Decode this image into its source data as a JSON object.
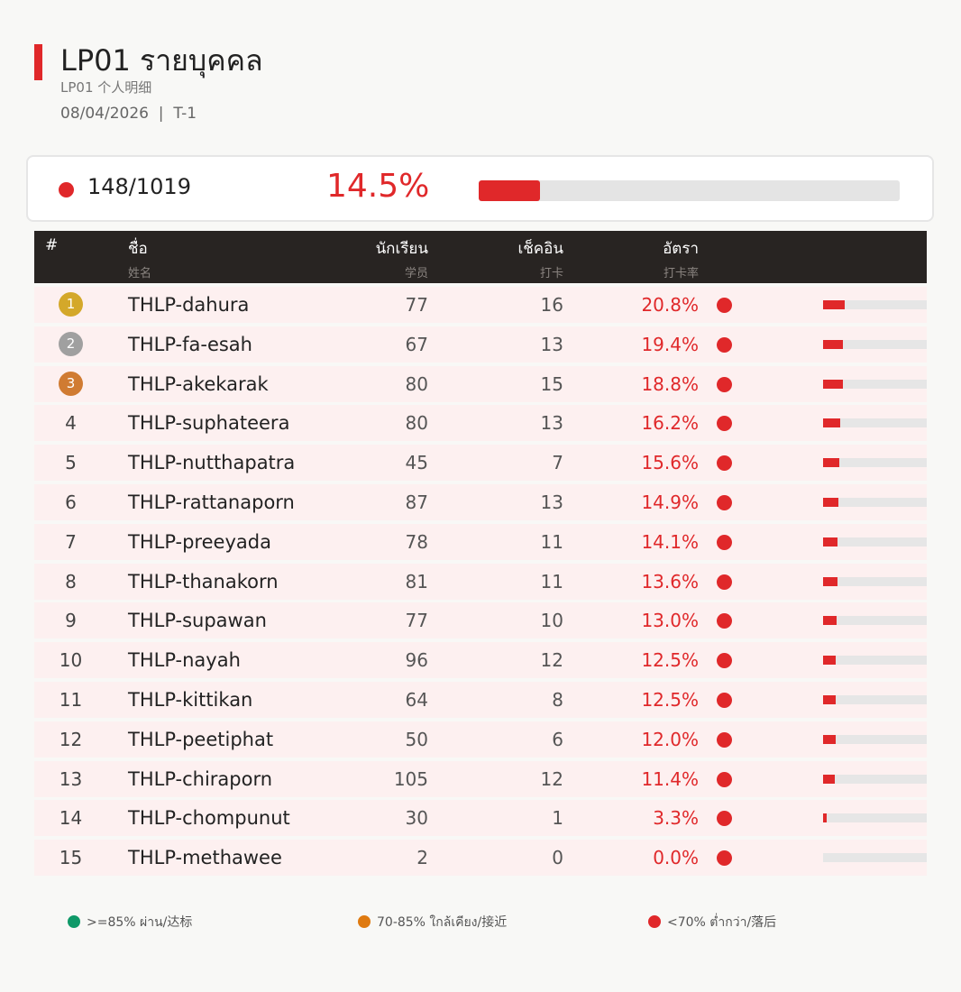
{
  "header": {
    "title": "LP01  รายบุคคล",
    "subtitle": "LP01  个人明细",
    "date": "08/04/2026",
    "separator": "|",
    "period": "T-1"
  },
  "summary": {
    "ratio": "148/1019",
    "percent": "14.5%",
    "progress_fraction": 0.145,
    "status_color": "#e0282a"
  },
  "table": {
    "columns": {
      "rank": {
        "label": "#"
      },
      "name": {
        "label": "ชื่อ",
        "sub": "姓名"
      },
      "students": {
        "label": "นักเรียน",
        "sub": "学员"
      },
      "checkins": {
        "label": "เช็คอิน",
        "sub": "打卡"
      },
      "rate": {
        "label": "อัตรา",
        "sub": "打卡率"
      }
    },
    "rows": [
      {
        "rank": "1",
        "medal": "gold",
        "name": "THLP-dahura",
        "students": "77",
        "checkins": "16",
        "rate": "20.8%",
        "rate_value": 20.8
      },
      {
        "rank": "2",
        "medal": "silver",
        "name": "THLP-fa-esah",
        "students": "67",
        "checkins": "13",
        "rate": "19.4%",
        "rate_value": 19.4
      },
      {
        "rank": "3",
        "medal": "bronze",
        "name": "THLP-akekarak",
        "students": "80",
        "checkins": "15",
        "rate": "18.8%",
        "rate_value": 18.8
      },
      {
        "rank": "4",
        "name": "THLP-suphateera",
        "students": "80",
        "checkins": "13",
        "rate": "16.2%",
        "rate_value": 16.2
      },
      {
        "rank": "5",
        "name": "THLP-nutthapatra",
        "students": "45",
        "checkins": "7",
        "rate": "15.6%",
        "rate_value": 15.6
      },
      {
        "rank": "6",
        "name": "THLP-rattanaporn",
        "students": "87",
        "checkins": "13",
        "rate": "14.9%",
        "rate_value": 14.9
      },
      {
        "rank": "7",
        "name": "THLP-preeyada",
        "students": "78",
        "checkins": "11",
        "rate": "14.1%",
        "rate_value": 14.1
      },
      {
        "rank": "8",
        "name": "THLP-thanakorn",
        "students": "81",
        "checkins": "11",
        "rate": "13.6%",
        "rate_value": 13.6
      },
      {
        "rank": "9",
        "name": "THLP-supawan",
        "students": "77",
        "checkins": "10",
        "rate": "13.0%",
        "rate_value": 13.0
      },
      {
        "rank": "10",
        "name": "THLP-nayah",
        "students": "96",
        "checkins": "12",
        "rate": "12.5%",
        "rate_value": 12.5
      },
      {
        "rank": "11",
        "name": "THLP-kittikan",
        "students": "64",
        "checkins": "8",
        "rate": "12.5%",
        "rate_value": 12.5
      },
      {
        "rank": "12",
        "name": "THLP-peetiphat",
        "students": "50",
        "checkins": "6",
        "rate": "12.0%",
        "rate_value": 12.0
      },
      {
        "rank": "13",
        "name": "THLP-chiraporn",
        "students": "105",
        "checkins": "12",
        "rate": "11.4%",
        "rate_value": 11.4
      },
      {
        "rank": "14",
        "name": "THLP-chompunut",
        "students": "30",
        "checkins": "1",
        "rate": "3.3%",
        "rate_value": 3.3
      },
      {
        "rank": "15",
        "name": "THLP-methawee",
        "students": "2",
        "checkins": "0",
        "rate": "0.0%",
        "rate_value": 0.0
      }
    ]
  },
  "legend": [
    {
      "label": ">=85% ผ่าน/达标",
      "color": "#0f9968"
    },
    {
      "label": "70-85% ใกล้เคียง/接近",
      "color": "#df7a10"
    },
    {
      "label": "<70% ต่ำกว่า/落后",
      "color": "#e0282a"
    }
  ],
  "colors": {
    "accent": "#e0282a",
    "header_bg": "#282422",
    "row_bg": "#fdf0f0",
    "gold": "#d4a82a",
    "silver": "#a0a0a0",
    "bronze": "#d07b32"
  }
}
